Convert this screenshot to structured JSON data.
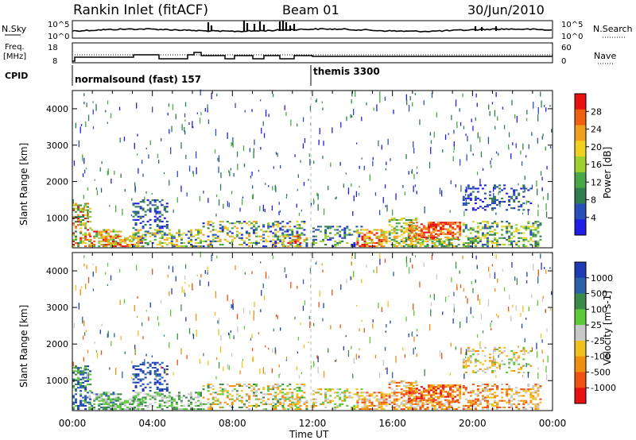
{
  "header": {
    "station": "Rankin Inlet (fitACF)",
    "beam": "Beam 01",
    "date": "30/Jun/2010"
  },
  "panels": {
    "noise": {
      "left_label": "N.Sky",
      "left_ticks": [
        "10^5",
        "10^0"
      ],
      "right_label": "N.Search",
      "right_ticks": [
        "10^5",
        "10^0"
      ]
    },
    "freq": {
      "left_label": "Freq.",
      "left_unit": "[MHz]",
      "left_ticks": [
        "18",
        "8"
      ],
      "right_label": "Nave",
      "right_ticks": [
        "60",
        "0"
      ]
    },
    "cpid": {
      "label": "CPID",
      "programs": [
        "normalsound (fast) 157",
        "themis 3300"
      ]
    }
  },
  "colors": {
    "power": [
      "#1e1ee6",
      "#2a4fb8",
      "#2f7d4e",
      "#48a848",
      "#9ed030",
      "#f0d020",
      "#f0a020",
      "#f06010",
      "#e81010"
    ],
    "velocity": [
      "#1e3ab4",
      "#2a62a8",
      "#3a8a4a",
      "#5cc83a",
      "#c8c8c8",
      "#f0c020",
      "#f09010",
      "#f05010",
      "#e81010"
    ]
  },
  "chart_data": [
    {
      "type": "heatmap",
      "title": "Power",
      "ylabel": "Slant Range [km]",
      "xlabel": "Time UT",
      "x_ticks": [
        "00:00",
        "04:00",
        "08:00",
        "12:00",
        "16:00",
        "20:00",
        "00:00"
      ],
      "y_ticks": [
        1000,
        2000,
        3000,
        4000
      ],
      "ylim": [
        180,
        4500
      ],
      "xlim_hours": [
        0,
        24
      ],
      "colorbar_label": "Power [dB]",
      "colorbar_ticks": [
        "28",
        "24",
        "20",
        "16",
        "12",
        "8",
        "4"
      ],
      "colorbar_range": [
        0,
        30
      ]
    },
    {
      "type": "heatmap",
      "title": "Velocity",
      "ylabel": "Slant Range [km]",
      "xlabel": "Time UT",
      "x_ticks": [
        "00:00",
        "04:00",
        "08:00",
        "12:00",
        "16:00",
        "20:00",
        "00:00"
      ],
      "y_ticks": [
        1000,
        2000,
        3000,
        4000
      ],
      "ylim": [
        180,
        4500
      ],
      "xlim_hours": [
        0,
        24
      ],
      "colorbar_label": "Velocity [m s-1]",
      "colorbar_ticks": [
        "1000",
        "500",
        "100",
        "25",
        "-25",
        "-100",
        "-500",
        "-1000"
      ],
      "colorbar_range": [
        -1000,
        1000
      ]
    }
  ],
  "time_axis": {
    "ticks": [
      "00:00",
      "04:00",
      "08:00",
      "12:00",
      "16:00",
      "20:00",
      "00:00"
    ],
    "label": "Time UT"
  }
}
